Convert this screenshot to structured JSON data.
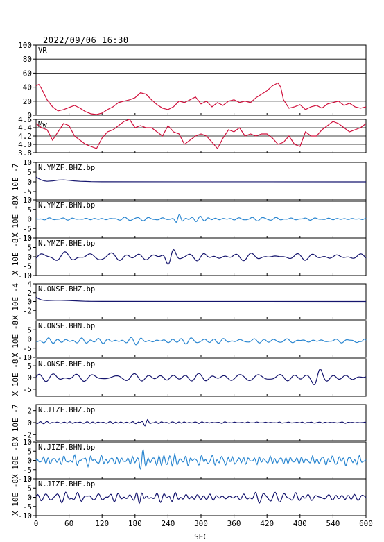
{
  "header": {
    "timestamp": "2022/09/06 16:30"
  },
  "xaxis": {
    "label": "SEC",
    "ticks": [
      0,
      60,
      120,
      180,
      240,
      300,
      360,
      420,
      480,
      540,
      600
    ],
    "xlim": [
      0,
      600
    ]
  },
  "colors": {
    "red": "#d0103c",
    "dark_blue": "#15156e",
    "mid_blue": "#2a86d0",
    "grid": "#000000"
  },
  "chart_data": [
    {
      "type": "line",
      "title": "VR",
      "ylim": [
        0,
        100
      ],
      "yticks": [
        0,
        20,
        40,
        60,
        80,
        100
      ],
      "ytick_labels": [
        "0",
        "20",
        "40",
        "60",
        "80",
        "100"
      ],
      "grid": true,
      "color": "red",
      "x": [
        0,
        5,
        10,
        20,
        30,
        40,
        50,
        60,
        70,
        80,
        90,
        100,
        110,
        120,
        130,
        140,
        150,
        160,
        170,
        180,
        190,
        200,
        210,
        220,
        230,
        240,
        250,
        260,
        270,
        280,
        290,
        300,
        310,
        320,
        330,
        340,
        350,
        360,
        370,
        380,
        390,
        400,
        410,
        420,
        430,
        440,
        445,
        450,
        460,
        470,
        480,
        490,
        500,
        510,
        520,
        530,
        540,
        550,
        560,
        570,
        580,
        590,
        600
      ],
      "y": [
        42,
        44,
        38,
        22,
        12,
        6,
        8,
        11,
        14,
        10,
        5,
        2,
        1,
        3,
        8,
        12,
        18,
        20,
        22,
        25,
        32,
        30,
        22,
        15,
        10,
        8,
        12,
        20,
        18,
        22,
        26,
        16,
        20,
        12,
        18,
        14,
        20,
        22,
        18,
        20,
        18,
        25,
        30,
        35,
        42,
        46,
        40,
        22,
        10,
        12,
        15,
        8,
        12,
        14,
        10,
        16,
        18,
        20,
        14,
        17,
        12,
        10,
        12
      ]
    },
    {
      "type": "line",
      "title": "Mw",
      "ylim": [
        3.8,
        4.6
      ],
      "yticks": [
        3.8,
        4.0,
        4.2,
        4.4,
        4.6
      ],
      "ytick_labels": [
        "3.8",
        "4.0",
        "4.2",
        "4.4",
        "4.6"
      ],
      "grid": true,
      "color": "red",
      "x": [
        0,
        10,
        20,
        30,
        40,
        50,
        60,
        70,
        80,
        90,
        100,
        110,
        120,
        130,
        140,
        150,
        160,
        170,
        180,
        190,
        200,
        210,
        220,
        230,
        240,
        250,
        260,
        270,
        280,
        290,
        300,
        310,
        320,
        330,
        340,
        350,
        360,
        370,
        380,
        390,
        400,
        410,
        420,
        430,
        440,
        450,
        460,
        470,
        480,
        490,
        500,
        510,
        520,
        530,
        540,
        550,
        560,
        570,
        580,
        590,
        600
      ],
      "y": [
        4.5,
        4.4,
        4.35,
        4.1,
        4.3,
        4.5,
        4.45,
        4.2,
        4.1,
        4.0,
        3.95,
        3.9,
        4.15,
        4.3,
        4.35,
        4.45,
        4.55,
        4.6,
        4.4,
        4.45,
        4.4,
        4.4,
        4.3,
        4.2,
        4.45,
        4.3,
        4.25,
        4.0,
        4.1,
        4.2,
        4.25,
        4.2,
        4.05,
        3.9,
        4.15,
        4.35,
        4.3,
        4.4,
        4.2,
        4.25,
        4.2,
        4.25,
        4.25,
        4.15,
        4.0,
        4.05,
        4.2,
        4.0,
        3.95,
        4.3,
        4.2,
        4.2,
        4.35,
        4.45,
        4.55,
        4.5,
        4.4,
        4.3,
        4.35,
        4.4,
        4.5
      ]
    },
    {
      "type": "line",
      "title": "N.YMZF.BHZ.bp",
      "exponent_label": "X 10E -7",
      "ylim": [
        -10,
        10
      ],
      "yticks": [
        -5,
        0,
        5,
        10
      ],
      "ytick_labels": [
        "-5",
        "0",
        "5",
        "10"
      ],
      "color": "dark_blue",
      "x": [
        0,
        5,
        10,
        15,
        20,
        30,
        40,
        50,
        60,
        70,
        80,
        90,
        100,
        120,
        600
      ],
      "y": [
        2.5,
        1.6,
        0.9,
        0.5,
        0.3,
        0.5,
        0.9,
        1.0,
        0.8,
        0.5,
        0.3,
        0.2,
        0.1,
        0.05,
        0
      ]
    },
    {
      "type": "line",
      "title": "N.YMZF.BHN.bp",
      "exponent_label": "X 10E -8",
      "ylim": [
        -10,
        10
      ],
      "yticks": [
        -10,
        -5,
        0,
        5,
        10
      ],
      "ytick_labels": [
        "-10",
        "-5",
        "0",
        "5",
        "10"
      ],
      "color": "mid_blue",
      "wave": {
        "pattern": "noise",
        "base_amp": 0.4,
        "bursts": [
          [
            258,
            2.8,
            8
          ],
          [
            295,
            0.9,
            25
          ]
        ],
        "period": 16,
        "seed": 3
      }
    },
    {
      "type": "line",
      "title": "N.YMZF.BHE.bp",
      "exponent_label": "X 10E -8",
      "ylim": [
        -10,
        10
      ],
      "yticks": [
        -10,
        -5,
        0,
        5,
        10
      ],
      "ytick_labels": [
        "-10",
        "-5",
        "0",
        "5",
        "10"
      ],
      "color": "dark_blue",
      "wave": {
        "pattern": "noise",
        "base_amp": 1.2,
        "bursts": [
          [
            245,
            4.5,
            12
          ],
          [
            300,
            1.5,
            25
          ]
        ],
        "period": 26,
        "seed": 7
      }
    },
    {
      "type": "line",
      "title": "N.ONSF.BHZ.bp",
      "exponent_label": "X 10E -4",
      "ylim": [
        -4,
        4
      ],
      "yticks": [
        -2,
        0,
        2,
        4
      ],
      "ytick_labels": [
        "-2",
        "0",
        "2",
        "4"
      ],
      "color": "dark_blue",
      "x": [
        0,
        5,
        10,
        15,
        20,
        30,
        40,
        50,
        60,
        70,
        80,
        90,
        100,
        120,
        600
      ],
      "y": [
        1.0,
        0.6,
        0.35,
        0.25,
        0.2,
        0.25,
        0.3,
        0.25,
        0.2,
        0.15,
        0.1,
        0.05,
        0.03,
        0.01,
        0
      ]
    },
    {
      "type": "line",
      "title": "N.ONSF.BHN.bp",
      "exponent_label": "X 10E -8",
      "ylim": [
        -10,
        10
      ],
      "yticks": [
        -10,
        -5,
        0,
        5
      ],
      "ytick_labels": [
        "-10",
        "-5",
        "0",
        "5"
      ],
      "color": "mid_blue",
      "wave": {
        "pattern": "noise",
        "base_amp": 1.0,
        "offset": -1,
        "bursts": [
          [
            595,
            2.0,
            6
          ]
        ],
        "period": 22,
        "seed": 11
      }
    },
    {
      "type": "line",
      "title": "N.ONSF.BHE.bp",
      "exponent_label": "X 10E -8",
      "ylim": [
        -8,
        8
      ],
      "yticks": [
        -5,
        0,
        5
      ],
      "ytick_labels": [
        "-5",
        "0",
        "5"
      ],
      "color": "dark_blue",
      "wave": {
        "pattern": "noise",
        "base_amp": 1.2,
        "bursts": [
          [
            512,
            2.5,
            10
          ]
        ],
        "period": 28,
        "seed": 19
      }
    },
    {
      "type": "line",
      "title": "N.JIZF.BHZ.bp",
      "exponent_label": "X 10E -7",
      "ylim": [
        -3,
        3
      ],
      "yticks": [
        -2,
        0,
        2
      ],
      "ytick_labels": [
        "-2",
        "0",
        "2"
      ],
      "color": "dark_blue",
      "wave": {
        "pattern": "noise",
        "base_amp": 0.08,
        "bursts": [
          [
            200,
            0.6,
            8
          ],
          [
            5,
            0.15,
            15
          ]
        ],
        "period": 12,
        "seed": 23
      }
    },
    {
      "type": "line",
      "title": "N.JIZF.BHN.bp",
      "exponent_label": "X 10E -8",
      "ylim": [
        -10,
        10
      ],
      "yticks": [
        -10,
        -5,
        0,
        5,
        10
      ],
      "ytick_labels": [
        "-10",
        "-5",
        "0",
        "5",
        "10"
      ],
      "color": "mid_blue",
      "wave": {
        "pattern": "noise",
        "base_amp": 1.3,
        "bursts": [
          [
            192,
            5.0,
            6
          ],
          [
            240,
            1.5,
            25
          ]
        ],
        "period": 11,
        "seed": 29
      }
    },
    {
      "type": "line",
      "title": "N.JIZF.BHE.bp",
      "exponent_label": "X 10E -8",
      "ylim": [
        -10,
        10
      ],
      "yticks": [
        -10,
        -5,
        0,
        5,
        10
      ],
      "ytick_labels": [
        "-10",
        "-5",
        "0",
        "5",
        "10"
      ],
      "color": "dark_blue",
      "wave": {
        "pattern": "noise",
        "base_amp": 1.4,
        "bursts": [
          [
            190,
            4.0,
            8
          ],
          [
            260,
            1.5,
            25
          ]
        ],
        "period": 12,
        "seed": 31
      }
    }
  ]
}
